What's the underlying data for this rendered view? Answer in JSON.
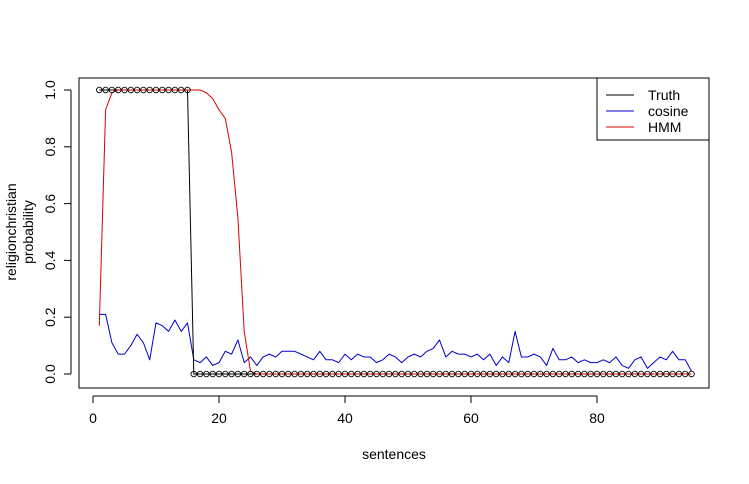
{
  "chart_data": {
    "type": "line",
    "title": "",
    "xlabel": "sentences",
    "ylabel_lines": [
      "religionchristian",
      "probability"
    ],
    "xlim": [
      1,
      95
    ],
    "ylim": [
      0,
      1
    ],
    "x_ticks": [
      0,
      20,
      40,
      60,
      80
    ],
    "y_ticks": [
      0.0,
      0.2,
      0.4,
      0.6,
      0.8,
      1.0
    ],
    "x_tick_labels": [
      "0",
      "20",
      "40",
      "60",
      "80"
    ],
    "y_tick_labels": [
      "0.0",
      "0.2",
      "0.4",
      "0.6",
      "0.8",
      "1.0"
    ],
    "legend": {
      "position": "top-right",
      "entries": [
        {
          "label": "Truth",
          "color": "#000000"
        },
        {
          "label": "cosine",
          "color": "#0000cc"
        },
        {
          "label": "HMM",
          "color": "#dd0000"
        }
      ]
    },
    "series": [
      {
        "name": "Truth",
        "color": "#000000",
        "markers": "open-circle",
        "values": [
          1,
          1,
          1,
          1,
          1,
          1,
          1,
          1,
          1,
          1,
          1,
          1,
          1,
          1,
          1,
          0,
          0,
          0,
          0,
          0,
          0,
          0,
          0,
          0,
          0,
          0,
          0,
          0,
          0,
          0,
          0,
          0,
          0,
          0,
          0,
          0,
          0,
          0,
          0,
          0,
          0,
          0,
          0,
          0,
          0,
          0,
          0,
          0,
          0,
          0,
          0,
          0,
          0,
          0,
          0,
          0,
          0,
          0,
          0,
          0,
          0,
          0,
          0,
          0,
          0,
          0,
          0,
          0,
          0,
          0,
          0,
          0,
          0,
          0,
          0,
          0,
          0,
          0,
          0,
          0,
          0,
          0,
          0,
          0,
          0,
          0,
          0,
          0,
          0,
          0,
          0,
          0,
          0,
          0,
          0
        ]
      },
      {
        "name": "cosine",
        "color": "#0000cc",
        "values": [
          0.21,
          0.21,
          0.11,
          0.07,
          0.07,
          0.1,
          0.14,
          0.11,
          0.05,
          0.18,
          0.17,
          0.15,
          0.19,
          0.15,
          0.18,
          0.05,
          0.04,
          0.06,
          0.03,
          0.04,
          0.08,
          0.07,
          0.12,
          0.04,
          0.06,
          0.03,
          0.06,
          0.07,
          0.06,
          0.08,
          0.08,
          0.08,
          0.07,
          0.06,
          0.05,
          0.08,
          0.05,
          0.05,
          0.04,
          0.07,
          0.05,
          0.07,
          0.06,
          0.06,
          0.04,
          0.05,
          0.07,
          0.06,
          0.04,
          0.06,
          0.07,
          0.06,
          0.08,
          0.09,
          0.12,
          0.06,
          0.08,
          0.07,
          0.07,
          0.06,
          0.07,
          0.05,
          0.07,
          0.03,
          0.06,
          0.04,
          0.15,
          0.06,
          0.06,
          0.07,
          0.06,
          0.03,
          0.09,
          0.05,
          0.05,
          0.06,
          0.04,
          0.05,
          0.04,
          0.04,
          0.05,
          0.04,
          0.06,
          0.03,
          0.02,
          0.05,
          0.06,
          0.02,
          0.04,
          0.06,
          0.05,
          0.08,
          0.05,
          0.05,
          0.01
        ]
      },
      {
        "name": "HMM",
        "color": "#dd0000",
        "values": [
          0.17,
          0.93,
          0.99,
          1,
          1,
          1,
          1,
          1,
          1,
          1,
          1,
          1,
          1,
          1,
          1,
          1,
          1,
          0.99,
          0.97,
          0.93,
          0.9,
          0.78,
          0.55,
          0.15,
          0.01,
          0,
          0,
          0,
          0,
          0,
          0,
          0,
          0,
          0,
          0,
          0,
          0,
          0,
          0,
          0,
          0,
          0,
          0,
          0,
          0,
          0,
          0,
          0,
          0,
          0,
          0,
          0,
          0,
          0,
          0,
          0,
          0,
          0,
          0,
          0,
          0,
          0,
          0,
          0,
          0,
          0,
          0,
          0,
          0,
          0,
          0,
          0,
          0,
          0,
          0,
          0,
          0,
          0,
          0,
          0,
          0,
          0,
          0,
          0,
          0,
          0,
          0,
          0,
          0,
          0,
          0,
          0,
          0,
          0,
          0
        ]
      }
    ]
  }
}
